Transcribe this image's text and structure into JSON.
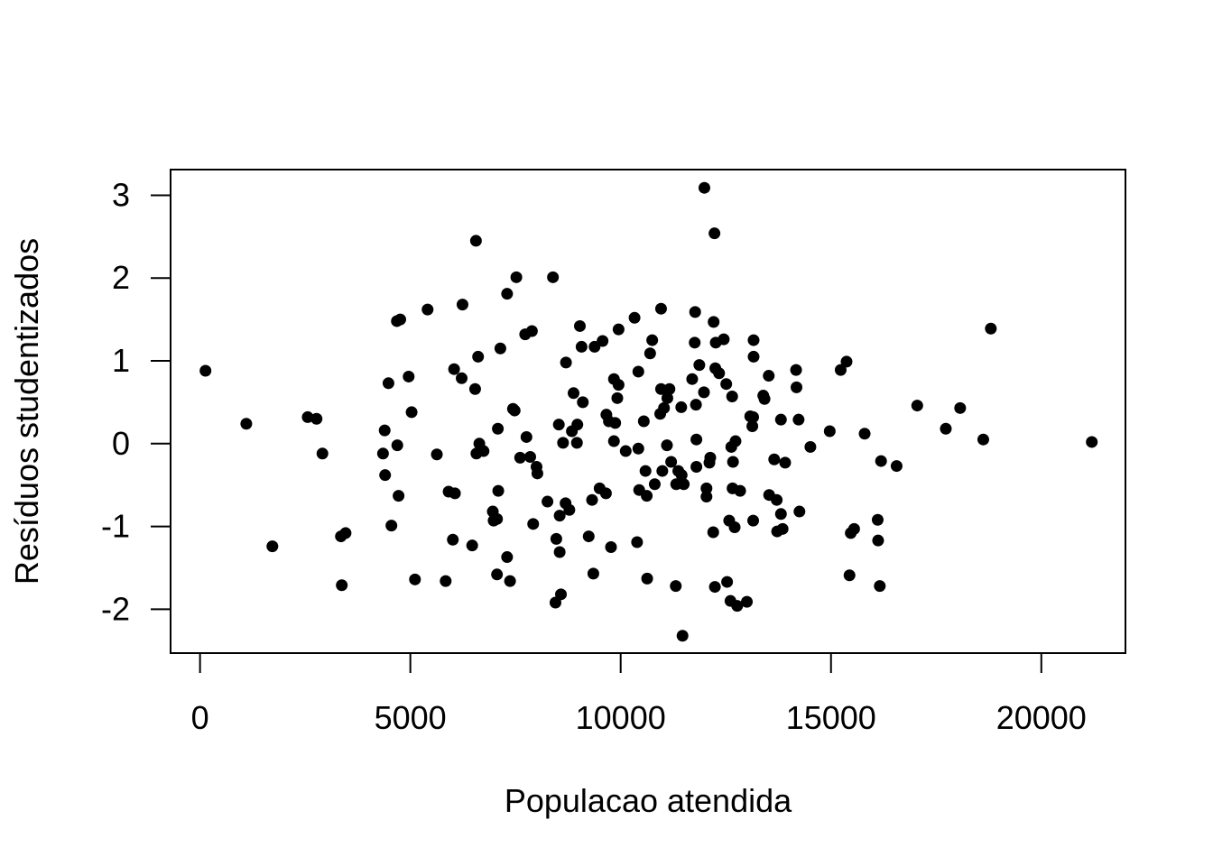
{
  "chart_data": {
    "type": "scatter",
    "title": "",
    "xlabel": "Populacao atendida",
    "ylabel": "Resíduos studentizados",
    "xlim": [
      -700,
      22000
    ],
    "ylim": [
      -2.53,
      3.31
    ],
    "x_ticks": [
      0,
      5000,
      10000,
      15000,
      20000
    ],
    "x_tick_labels": [
      "0",
      "5000",
      "10000",
      "15000",
      "20000"
    ],
    "y_ticks": [
      -2,
      -1,
      0,
      1,
      2,
      3
    ],
    "y_tick_labels": [
      "-2",
      "-1",
      "0",
      "1",
      "2",
      "3"
    ],
    "grid": false,
    "marker_color": "#000000",
    "points": [
      [
        130,
        0.88
      ],
      [
        1100,
        0.24
      ],
      [
        1720,
        -1.24
      ],
      [
        2560,
        0.32
      ],
      [
        2770,
        0.3
      ],
      [
        2910,
        -0.12
      ],
      [
        3350,
        -1.12
      ],
      [
        3460,
        -1.08
      ],
      [
        3370,
        -1.71
      ],
      [
        4350,
        -0.12
      ],
      [
        4390,
        0.16
      ],
      [
        4400,
        -0.38
      ],
      [
        4480,
        0.73
      ],
      [
        4550,
        -0.99
      ],
      [
        4690,
        -0.02
      ],
      [
        4680,
        1.48
      ],
      [
        4760,
        1.5
      ],
      [
        4720,
        -0.63
      ],
      [
        4960,
        0.81
      ],
      [
        5030,
        0.38
      ],
      [
        5110,
        -1.64
      ],
      [
        5410,
        1.62
      ],
      [
        5630,
        -0.13
      ],
      [
        5840,
        -1.66
      ],
      [
        5910,
        -0.58
      ],
      [
        6040,
        0.9
      ],
      [
        6010,
        -1.16
      ],
      [
        6060,
        -0.6
      ],
      [
        6220,
        0.79
      ],
      [
        6240,
        1.68
      ],
      [
        6470,
        -1.23
      ],
      [
        6540,
        0.66
      ],
      [
        6560,
        2.45
      ],
      [
        6570,
        -0.12
      ],
      [
        6610,
        1.05
      ],
      [
        6640,
        0.0
      ],
      [
        6740,
        -0.09
      ],
      [
        6960,
        -0.82
      ],
      [
        6980,
        -0.93
      ],
      [
        7060,
        -0.91
      ],
      [
        7080,
        0.18
      ],
      [
        7090,
        -0.57
      ],
      [
        7060,
        -1.58
      ],
      [
        7140,
        1.15
      ],
      [
        7300,
        1.81
      ],
      [
        7300,
        -1.37
      ],
      [
        7370,
        -1.66
      ],
      [
        7440,
        0.42
      ],
      [
        7480,
        0.4
      ],
      [
        7520,
        2.01
      ],
      [
        7610,
        -0.17
      ],
      [
        7730,
        1.32
      ],
      [
        7760,
        0.08
      ],
      [
        7850,
        -0.16
      ],
      [
        7890,
        1.36
      ],
      [
        7920,
        -0.97
      ],
      [
        8000,
        -0.28
      ],
      [
        8020,
        -0.36
      ],
      [
        8260,
        -0.7
      ],
      [
        8390,
        2.01
      ],
      [
        8450,
        -1.92
      ],
      [
        8470,
        -1.15
      ],
      [
        8530,
        0.23
      ],
      [
        8550,
        -0.87
      ],
      [
        8550,
        -1.31
      ],
      [
        8580,
        -1.82
      ],
      [
        8630,
        0.01
      ],
      [
        8690,
        -0.72
      ],
      [
        8700,
        0.98
      ],
      [
        8780,
        -0.8
      ],
      [
        8840,
        0.15
      ],
      [
        8880,
        0.61
      ],
      [
        8960,
        0.01
      ],
      [
        8970,
        0.23
      ],
      [
        9030,
        1.42
      ],
      [
        9070,
        1.17
      ],
      [
        9100,
        0.5
      ],
      [
        9240,
        -1.12
      ],
      [
        9320,
        -0.68
      ],
      [
        9350,
        -1.57
      ],
      [
        9380,
        1.17
      ],
      [
        9500,
        -0.54
      ],
      [
        9570,
        1.24
      ],
      [
        9650,
        -0.6
      ],
      [
        9660,
        0.35
      ],
      [
        9720,
        0.27
      ],
      [
        9770,
        -1.25
      ],
      [
        9840,
        0.78
      ],
      [
        9840,
        0.03
      ],
      [
        9870,
        0.25
      ],
      [
        9920,
        0.55
      ],
      [
        9950,
        0.71
      ],
      [
        9950,
        1.38
      ],
      [
        10120,
        -0.09
      ],
      [
        10330,
        1.52
      ],
      [
        10390,
        -1.19
      ],
      [
        10420,
        0.87
      ],
      [
        10420,
        -0.06
      ],
      [
        10440,
        -0.56
      ],
      [
        10550,
        0.27
      ],
      [
        10590,
        -0.33
      ],
      [
        10630,
        -1.63
      ],
      [
        10620,
        -0.63
      ],
      [
        10700,
        1.09
      ],
      [
        10750,
        1.25
      ],
      [
        10810,
        -0.49
      ],
      [
        10940,
        0.36
      ],
      [
        10960,
        1.63
      ],
      [
        10960,
        0.66
      ],
      [
        10990,
        -0.33
      ],
      [
        11030,
        0.43
      ],
      [
        11100,
        -0.02
      ],
      [
        11110,
        0.55
      ],
      [
        11160,
        0.66
      ],
      [
        11200,
        -0.22
      ],
      [
        11310,
        -1.72
      ],
      [
        11320,
        -0.49
      ],
      [
        11370,
        -0.33
      ],
      [
        11440,
        0.44
      ],
      [
        11450,
        -0.38
      ],
      [
        11470,
        -2.32
      ],
      [
        11500,
        -0.49
      ],
      [
        11700,
        0.78
      ],
      [
        11760,
        1.22
      ],
      [
        11770,
        1.59
      ],
      [
        11790,
        0.47
      ],
      [
        11800,
        -0.28
      ],
      [
        11800,
        0.05
      ],
      [
        11870,
        0.95
      ],
      [
        11980,
        0.62
      ],
      [
        11990,
        3.09
      ],
      [
        12040,
        -0.54
      ],
      [
        12040,
        -0.64
      ],
      [
        12110,
        -0.23
      ],
      [
        12130,
        -0.17
      ],
      [
        12200,
        -1.07
      ],
      [
        12210,
        1.47
      ],
      [
        12230,
        2.54
      ],
      [
        12240,
        -1.73
      ],
      [
        12250,
        0.91
      ],
      [
        12260,
        1.22
      ],
      [
        12340,
        0.85
      ],
      [
        12450,
        1.26
      ],
      [
        12510,
        0.72
      ],
      [
        12530,
        -1.67
      ],
      [
        12580,
        -0.93
      ],
      [
        12610,
        -1.9
      ],
      [
        12630,
        -0.04
      ],
      [
        12650,
        0.57
      ],
      [
        12660,
        -0.54
      ],
      [
        12670,
        -0.22
      ],
      [
        12710,
        -1.01
      ],
      [
        12730,
        0.03
      ],
      [
        12770,
        -1.96
      ],
      [
        12840,
        -0.57
      ],
      [
        13000,
        -1.91
      ],
      [
        13080,
        0.33
      ],
      [
        13130,
        0.21
      ],
      [
        13150,
        -0.93
      ],
      [
        13150,
        0.32
      ],
      [
        13160,
        1.25
      ],
      [
        13160,
        1.05
      ],
      [
        13390,
        0.58
      ],
      [
        13420,
        0.54
      ],
      [
        13520,
        0.82
      ],
      [
        13530,
        -0.62
      ],
      [
        13650,
        -0.19
      ],
      [
        13710,
        -0.68
      ],
      [
        13720,
        -1.06
      ],
      [
        13810,
        0.29
      ],
      [
        13810,
        -0.85
      ],
      [
        13850,
        -1.03
      ],
      [
        13910,
        -0.23
      ],
      [
        14170,
        0.89
      ],
      [
        14180,
        0.68
      ],
      [
        14230,
        0.29
      ],
      [
        14250,
        -0.82
      ],
      [
        14510,
        -0.04
      ],
      [
        14970,
        0.15
      ],
      [
        15230,
        0.89
      ],
      [
        15370,
        0.99
      ],
      [
        15440,
        -1.59
      ],
      [
        15470,
        -1.08
      ],
      [
        15550,
        -1.03
      ],
      [
        15800,
        0.12
      ],
      [
        16110,
        -0.92
      ],
      [
        16120,
        -1.17
      ],
      [
        16160,
        -1.72
      ],
      [
        16190,
        -0.21
      ],
      [
        16560,
        -0.27
      ],
      [
        17050,
        0.46
      ],
      [
        17730,
        0.18
      ],
      [
        18070,
        0.43
      ],
      [
        18620,
        0.05
      ],
      [
        18800,
        1.39
      ],
      [
        21200,
        0.02
      ]
    ]
  }
}
